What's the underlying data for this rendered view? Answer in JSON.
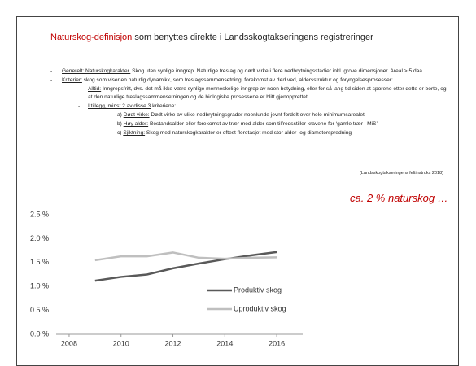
{
  "slide": {
    "title_highlight": "Naturskog-definisjon",
    "title_rest": " som benyttes direkte i Landsskogtakseringens registreringer",
    "items": [
      {
        "level": 1,
        "label": "Generelt: Naturskogkarakter.",
        "text": " Skog uten synlige inngrep. Naturlige treslag og dødt virke i flere nedbrytningsstadier inkl. grove dimensjoner. Areal > 5 daa."
      },
      {
        "level": 1,
        "label": "Kriterier:",
        "text": " skog som viser en naturlig dynamikk, som treslagssammensetning, forekomst av død ved, aldersstruktur og foryngelsesprosesser:"
      },
      {
        "level": 2,
        "label": "Alltid:",
        "text": " Inngrepsfritt, dvs. det må ikke være synlige menneskelige inngrep av noen betydning, eller for så lang tid siden at sporene etter dette er borte, og at den naturlige treslagssammensetningen og de biologiske prosessene er blitt gjenopprettet"
      },
      {
        "level": 2,
        "label": "I tillegg, minst 2 av disse 3",
        "text": " kriteriene:"
      },
      {
        "level": 3,
        "prefix": "a) ",
        "label": "Dødt virke:",
        "text": " Dødt virke av ulike nedbrytningsgrader noenlunde jevnt fordelt over hele minimumsarealet"
      },
      {
        "level": 3,
        "prefix": "b) ",
        "label": "Høy alder:",
        "text": " Bestandsalder eller forekomst av trær med alder som tilfredsstiller kravene for ‘gamle trær i MiS’"
      },
      {
        "level": 3,
        "prefix": "c) ",
        "label": "Sjiktning:",
        "text": " Skog med naturskogkarakter er oftest fleretasjet med stor alder- og diameterspredning"
      }
    ],
    "source": "(Landsskogtakseringens feltinstruks 2018)",
    "annotation": "ca. 2 % naturskog …"
  },
  "chart_data": {
    "type": "line",
    "x": [
      2009,
      2010,
      2011,
      2012,
      2013,
      2014,
      2015,
      2016
    ],
    "series": [
      {
        "name": "Produktiv skog",
        "color": "#595959",
        "values": [
          1.12,
          1.2,
          1.25,
          1.38,
          1.48,
          1.57,
          1.65,
          1.72
        ]
      },
      {
        "name": "Uproduktiv skog",
        "color": "#bfbfbf",
        "values": [
          1.55,
          1.63,
          1.63,
          1.71,
          1.6,
          1.58,
          1.6,
          1.61
        ]
      }
    ],
    "xlim": [
      2007.5,
      2017
    ],
    "xticks": [
      2008,
      2010,
      2012,
      2014,
      2016
    ],
    "ylim": [
      0,
      2.5
    ],
    "yticks": [
      {
        "value": 0,
        "label": "0.0 %"
      },
      {
        "value": 0.5,
        "label": "0.5 %"
      },
      {
        "value": 1,
        "label": "1.0 %"
      },
      {
        "value": 1.5,
        "label": "1.5 %"
      },
      {
        "value": 2,
        "label": "2.0 %"
      },
      {
        "value": 2.5,
        "label": "2.5 %"
      }
    ]
  }
}
